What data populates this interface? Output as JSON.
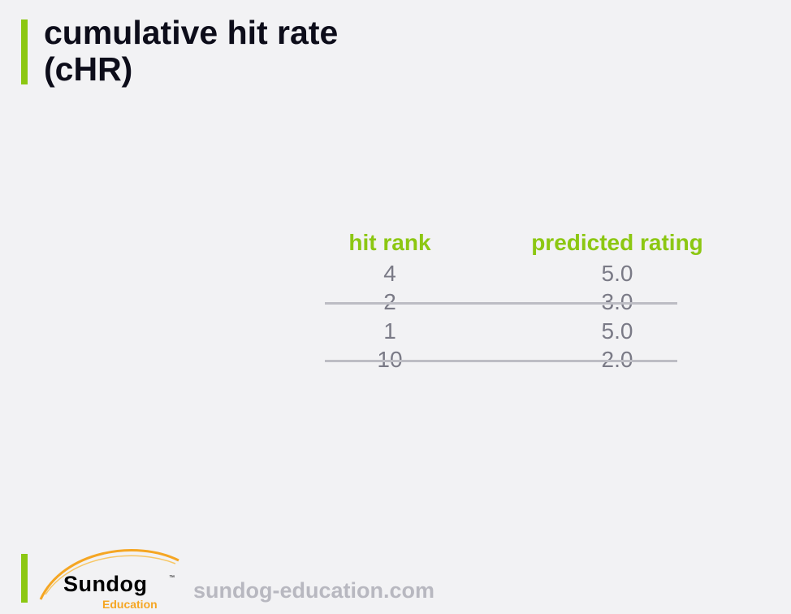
{
  "slide": {
    "title_line1": "cumulative hit rate",
    "title_line2": "(cHR)"
  },
  "table": {
    "headers": [
      "hit rank",
      "predicted rating"
    ],
    "rows": [
      {
        "hit_rank": "4",
        "predicted_rating": "5.0",
        "struck": false
      },
      {
        "hit_rank": "2",
        "predicted_rating": "3.0",
        "struck": true
      },
      {
        "hit_rank": "1",
        "predicted_rating": "5.0",
        "struck": false
      },
      {
        "hit_rank": "10",
        "predicted_rating": "2.0",
        "struck": true
      }
    ]
  },
  "footer": {
    "logo_word": "Sundog",
    "logo_tm": "™",
    "logo_sub": "Education",
    "url": "sundog-education.com"
  },
  "colors": {
    "accent": "#8cc712",
    "background": "#f2f2f4",
    "cell_text": "#7a7a86",
    "strike_line": "#bdbdc4",
    "logo_orange": "#f5a623"
  }
}
